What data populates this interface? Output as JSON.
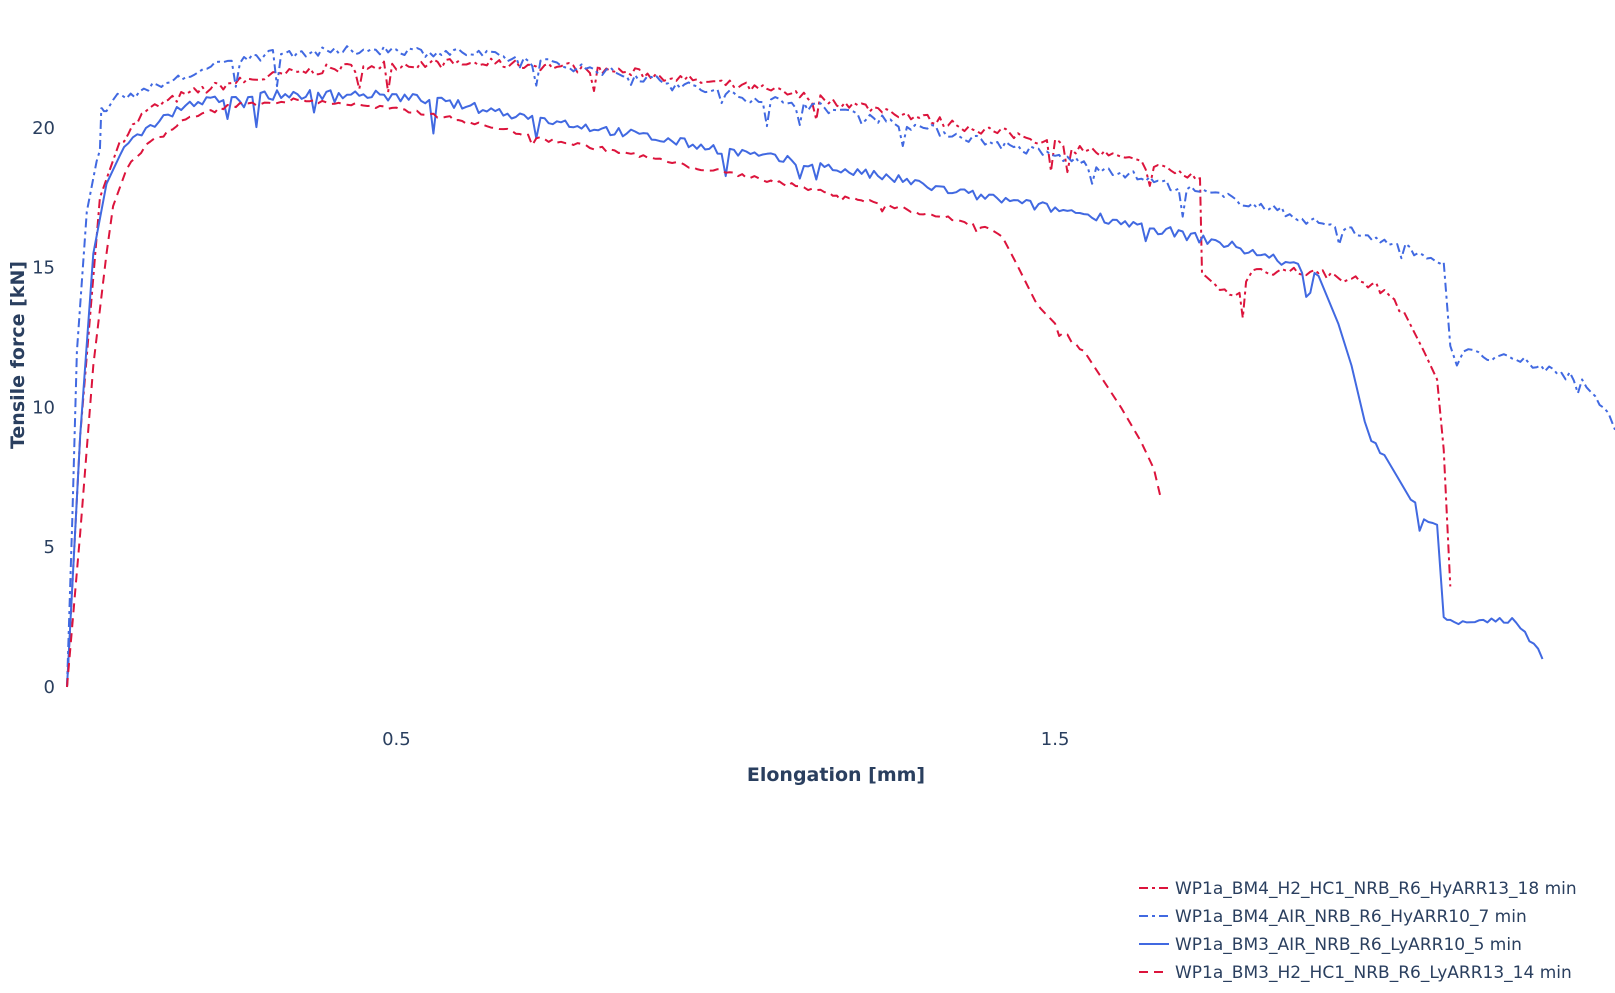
{
  "chart_data": {
    "type": "line",
    "xlabel": "Elongation [mm]",
    "ylabel": "Tensile force [kN]",
    "xlim": [
      0,
      2.35
    ],
    "ylim": [
      0,
      23.5
    ],
    "x_ticks": [
      0.5,
      1.5
    ],
    "y_ticks": [
      0,
      5,
      10,
      15,
      20
    ],
    "grid": false,
    "legend_position": "bottom-right",
    "series": [
      {
        "name": "WP1a_BM4_H2_HC1_NRB_R6_HyARR13_18 min",
        "color": "#dc143c",
        "dash": "dashdot",
        "noise": 0.35,
        "x": [
          0.0,
          0.02,
          0.05,
          0.08,
          0.12,
          0.18,
          0.25,
          0.35,
          0.45,
          0.55,
          0.65,
          0.75,
          0.85,
          0.95,
          1.05,
          1.15,
          1.25,
          1.35,
          1.45,
          1.55,
          1.65,
          1.72,
          1.723,
          1.75,
          1.78,
          1.785,
          1.79,
          1.8,
          1.85,
          1.9,
          1.95,
          2.0,
          2.03,
          2.06,
          2.08,
          2.09,
          2.1
        ],
        "y": [
          0.0,
          9.0,
          17.5,
          19.5,
          20.6,
          21.2,
          21.6,
          22.0,
          22.2,
          22.3,
          22.3,
          22.2,
          22.0,
          21.7,
          21.4,
          21.0,
          20.6,
          20.1,
          19.7,
          19.2,
          18.6,
          18.2,
          14.8,
          14.2,
          14.1,
          13.2,
          14.5,
          14.9,
          14.9,
          14.8,
          14.6,
          14.2,
          13.4,
          12.0,
          11.0,
          8.5,
          3.6
        ]
      },
      {
        "name": "WP1a_BM4_AIR_NRB_R6_HyARR10_7 min",
        "color": "#4169e1",
        "dash": "dashdot",
        "noise": 0.35,
        "x": [
          0.0,
          0.008,
          0.015,
          0.03,
          0.045,
          0.05,
          0.052,
          0.053,
          0.056,
          0.06,
          0.07,
          0.11,
          0.15,
          0.2,
          0.25,
          0.3,
          0.35,
          0.4,
          0.45,
          0.5,
          0.55,
          0.6,
          0.7,
          0.8,
          0.9,
          1.0,
          1.1,
          1.2,
          1.3,
          1.4,
          1.5,
          1.6,
          1.7,
          1.8,
          1.9,
          2.0,
          2.09,
          2.1,
          2.11,
          2.12,
          2.15,
          2.2,
          2.3,
          2.34,
          2.35
        ],
        "y": [
          0.0,
          6.0,
          12.0,
          17.0,
          18.8,
          19.2,
          20.7,
          20.7,
          20.6,
          20.6,
          21.0,
          21.3,
          21.6,
          22.0,
          22.4,
          22.6,
          22.7,
          22.7,
          22.8,
          22.8,
          22.7,
          22.7,
          22.4,
          22.1,
          21.7,
          21.2,
          20.9,
          20.5,
          20.0,
          19.5,
          19.0,
          18.4,
          17.8,
          17.3,
          16.6,
          16.0,
          15.2,
          12.2,
          11.5,
          12.0,
          11.8,
          11.7,
          11.0,
          9.8,
          9.2
        ]
      },
      {
        "name": "WP1a_BM3_AIR_NRB_R6_LyARR10_5 min",
        "color": "#4169e1",
        "dash": "solid",
        "noise": 0.35,
        "x": [
          0.0,
          0.02,
          0.04,
          0.06,
          0.08,
          0.12,
          0.18,
          0.25,
          0.35,
          0.45,
          0.55,
          0.65,
          0.75,
          0.85,
          0.95,
          1.05,
          1.15,
          1.25,
          1.35,
          1.45,
          1.55,
          1.65,
          1.75,
          1.85,
          1.9,
          1.93,
          1.95,
          1.97,
          1.98,
          2.0,
          2.02,
          2.04,
          2.06,
          2.08,
          2.09,
          2.095,
          2.1,
          2.15,
          2.2,
          2.24
        ],
        "y": [
          0.0,
          9.0,
          15.5,
          18.0,
          19.0,
          20.0,
          20.8,
          21.1,
          21.2,
          21.2,
          21.0,
          20.6,
          20.2,
          19.8,
          19.4,
          19.0,
          18.6,
          18.2,
          17.7,
          17.3,
          16.9,
          16.4,
          15.9,
          15.2,
          14.7,
          13.0,
          11.5,
          9.5,
          8.8,
          8.3,
          7.5,
          6.7,
          6.0,
          5.8,
          2.5,
          2.4,
          2.4,
          2.4,
          2.3,
          1.0
        ]
      },
      {
        "name": "WP1a_BM3_H2_HC1_NRB_R6_LyARR13_14 min",
        "color": "#dc143c",
        "dash": "dash",
        "noise": 0.15,
        "x": [
          0.0,
          0.02,
          0.04,
          0.06,
          0.07,
          0.09,
          0.12,
          0.18,
          0.25,
          0.35,
          0.45,
          0.55,
          0.65,
          0.75,
          0.85,
          0.95,
          1.05,
          1.15,
          1.25,
          1.35,
          1.4,
          1.42,
          1.44,
          1.47,
          1.5,
          1.55,
          1.6,
          1.63,
          1.65,
          1.66
        ],
        "y": [
          0.0,
          5.5,
          11.5,
          15.5,
          17.2,
          18.5,
          19.4,
          20.3,
          20.8,
          21.0,
          20.8,
          20.5,
          20.0,
          19.5,
          19.1,
          18.6,
          18.2,
          17.7,
          17.2,
          16.7,
          16.4,
          16.1,
          15.2,
          13.8,
          13.0,
          11.8,
          10.0,
          8.8,
          7.8,
          6.8
        ]
      }
    ]
  }
}
